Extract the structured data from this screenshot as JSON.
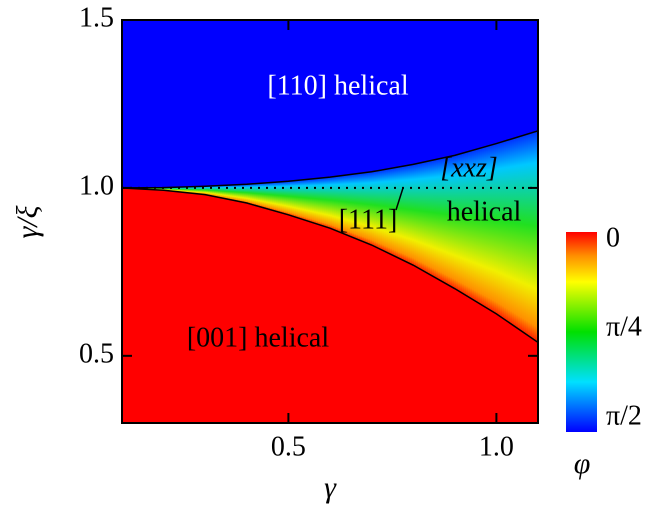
{
  "chart_data": {
    "type": "phase-diagram",
    "x_label": "γ",
    "y_label": "γ/ξ",
    "xlim": [
      0.1,
      1.1
    ],
    "ylim": [
      0.3,
      1.5
    ],
    "xticks": [
      0.5,
      {
        "value": 1.0,
        "label": "1.0"
      }
    ],
    "yticks": [
      0.5,
      {
        "value": 1.0,
        "label": "1.0"
      },
      1.5
    ],
    "boundaries": [
      {
        "x": [
          0.1,
          0.2,
          0.3,
          0.4,
          0.5,
          0.6,
          0.7,
          0.8,
          0.9,
          1.0,
          1.1
        ],
        "y": [
          1.0,
          1.001,
          1.005,
          1.011,
          1.02,
          1.032,
          1.048,
          1.07,
          1.097,
          1.132,
          1.17
        ]
      },
      {
        "x": [
          0.1,
          0.2,
          0.3,
          0.4,
          0.5,
          0.6,
          0.7,
          0.8,
          0.9,
          1.0,
          1.1
        ],
        "y": [
          1.0,
          0.993,
          0.98,
          0.955,
          0.92,
          0.88,
          0.83,
          0.77,
          0.7,
          0.625,
          0.54
        ]
      }
    ],
    "dotted_line_y": 1.0,
    "region_colors": [
      "#0000ff",
      "#ff0000"
    ],
    "annotations": [
      "[110] helical",
      "[xxz]",
      "helical",
      "[111]",
      "[001] helical"
    ],
    "colorbar": {
      "label": "φ",
      "lim": [
        0,
        1.5708
      ],
      "ticks": [
        {
          "value": 0,
          "label": "0"
        },
        {
          "value": 0.7854,
          "label": "π/4"
        },
        {
          "value": 1.5708,
          "label": "π/2"
        }
      ]
    }
  }
}
